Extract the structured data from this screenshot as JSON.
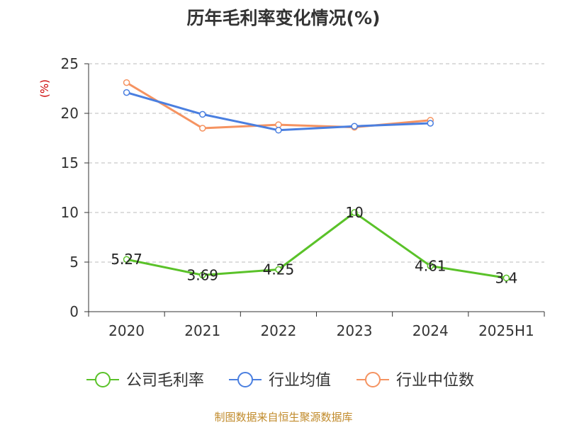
{
  "title": "历年毛利率变化情况(%)",
  "source_note": "制图数据来自恒生聚源数据库",
  "colors": {
    "company": "#5ac229",
    "industry_avg": "#4a7fe0",
    "industry_median": "#f59361",
    "unit_label": "#cc0000",
    "source_note": "#c08a2a",
    "axis": "#333333",
    "grid": "#bbbbbb"
  },
  "chart_data": {
    "type": "line",
    "title": "历年毛利率变化情况(%)",
    "ylabel": "(%)",
    "xlabel": "",
    "categories": [
      "2020",
      "2021",
      "2022",
      "2023",
      "2024",
      "2025H1"
    ],
    "ylim": [
      0,
      25
    ],
    "yticks": [
      0,
      5,
      10,
      15,
      20,
      25
    ],
    "grid": true,
    "legend_position": "bottom",
    "series": [
      {
        "key": "company",
        "name": "公司毛利率",
        "values": [
          5.27,
          3.69,
          4.25,
          10,
          4.61,
          3.4
        ],
        "labels": [
          "5.27",
          "3.69",
          "4.25",
          "10",
          "4.61",
          "3.4"
        ],
        "show_labels": true
      },
      {
        "key": "industry_avg",
        "name": "行业均值",
        "values": [
          22.1,
          19.9,
          18.3,
          18.7,
          19.0,
          null
        ],
        "show_labels": false
      },
      {
        "key": "industry_median",
        "name": "行业中位数",
        "values": [
          23.1,
          18.5,
          18.85,
          18.6,
          19.3,
          null
        ],
        "show_labels": false
      }
    ]
  }
}
